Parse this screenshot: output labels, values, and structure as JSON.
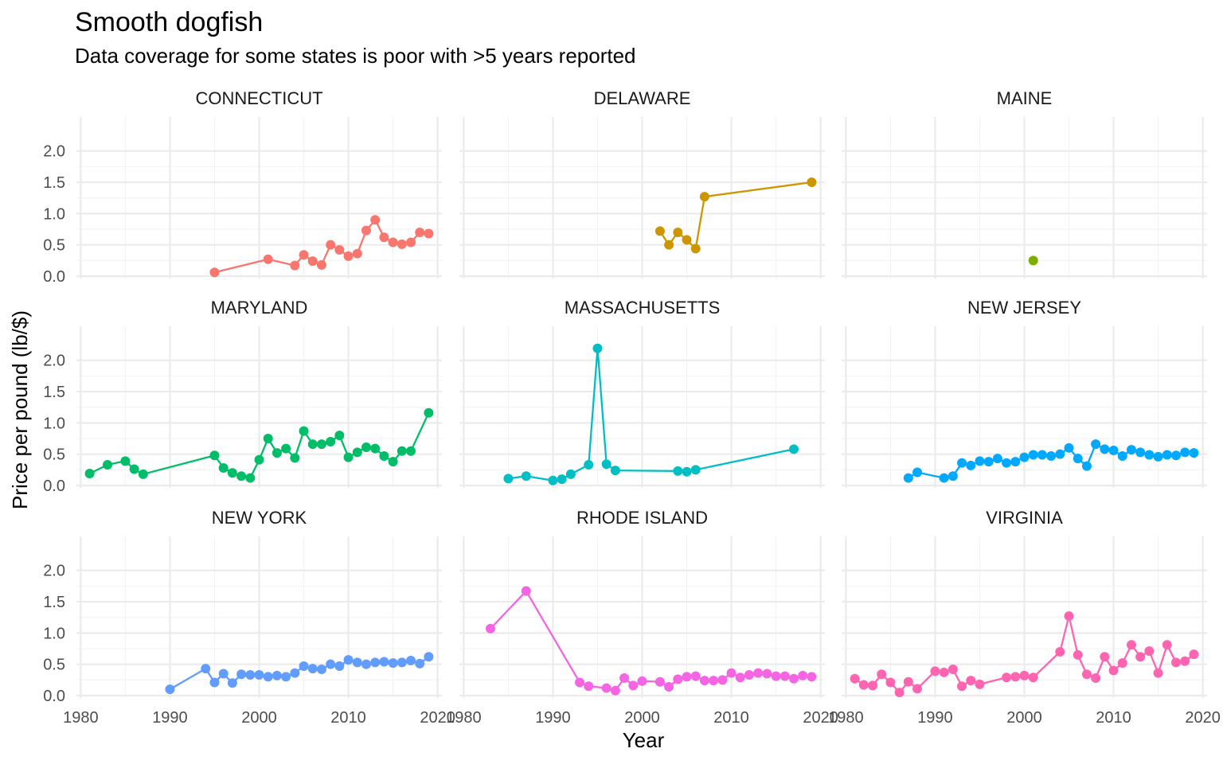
{
  "chart_data": {
    "type": "line",
    "title": "Smooth dogfish",
    "subtitle": "Data coverage for some states is poor with >5 years reported",
    "xlabel": "Year",
    "ylabel": "Price per pound (lb/$)",
    "xlim": [
      1980,
      2020
    ],
    "ylim": [
      0,
      2.2
    ],
    "x_ticks": [
      1980,
      1990,
      2000,
      2010,
      2020
    ],
    "x_tick_labels": [
      "1980",
      "1990",
      "2000",
      "2010",
      "2020"
    ],
    "y_ticks": [
      0,
      0.5,
      1,
      1.5,
      2
    ],
    "y_tick_labels": [
      "0.0",
      "0.5",
      "1.0",
      "1.5",
      "2.0"
    ],
    "grid": true,
    "legend": "none",
    "facets": [
      {
        "name": "CONNECTICUT",
        "color": "#F8766D",
        "x": [
          1995,
          2001,
          2004,
          2005,
          2006,
          2007,
          2008,
          2009,
          2010,
          2011,
          2012,
          2013,
          2014,
          2015,
          2016,
          2017,
          2018,
          2019
        ],
        "y": [
          0.06,
          0.27,
          0.17,
          0.34,
          0.24,
          0.18,
          0.5,
          0.42,
          0.32,
          0.36,
          0.73,
          0.9,
          0.62,
          0.54,
          0.51,
          0.54,
          0.7,
          0.68
        ]
      },
      {
        "name": "DELAWARE",
        "color": "#CD9600",
        "x": [
          2002,
          2003,
          2004,
          2005,
          2006,
          2007,
          2019
        ],
        "y": [
          0.72,
          0.5,
          0.7,
          0.58,
          0.44,
          1.27,
          1.5
        ]
      },
      {
        "name": "MAINE",
        "color": "#7CAE00",
        "x": [
          2001
        ],
        "y": [
          0.25
        ]
      },
      {
        "name": "MARYLAND",
        "color": "#00BE67",
        "x": [
          1981,
          1983,
          1985,
          1986,
          1987,
          1995,
          1996,
          1997,
          1998,
          1999,
          2000,
          2001,
          2002,
          2003,
          2004,
          2005,
          2006,
          2007,
          2008,
          2009,
          2010,
          2011,
          2012,
          2013,
          2014,
          2015,
          2016,
          2017,
          2019
        ],
        "y": [
          0.19,
          0.33,
          0.39,
          0.26,
          0.18,
          0.48,
          0.28,
          0.2,
          0.15,
          0.12,
          0.41,
          0.75,
          0.52,
          0.59,
          0.44,
          0.87,
          0.66,
          0.66,
          0.7,
          0.8,
          0.45,
          0.53,
          0.61,
          0.59,
          0.47,
          0.38,
          0.55,
          0.55,
          1.16
        ]
      },
      {
        "name": "MASSACHUSETTS",
        "color": "#00BFC4",
        "x": [
          1985,
          1987,
          1990,
          1991,
          1992,
          1994,
          1995,
          1996,
          1997,
          2004,
          2005,
          2006,
          2017
        ],
        "y": [
          0.11,
          0.15,
          0.08,
          0.1,
          0.18,
          0.33,
          2.19,
          0.34,
          0.24,
          0.23,
          0.22,
          0.25,
          0.58
        ]
      },
      {
        "name": "NEW JERSEY",
        "color": "#00A9FF",
        "x": [
          1987,
          1988,
          1991,
          1992,
          1993,
          1994,
          1995,
          1996,
          1997,
          1998,
          1999,
          2000,
          2001,
          2002,
          2003,
          2004,
          2005,
          2006,
          2007,
          2008,
          2009,
          2010,
          2011,
          2012,
          2013,
          2014,
          2015,
          2016,
          2017,
          2018,
          2019
        ],
        "y": [
          0.12,
          0.21,
          0.12,
          0.15,
          0.36,
          0.32,
          0.39,
          0.38,
          0.43,
          0.36,
          0.38,
          0.45,
          0.49,
          0.49,
          0.47,
          0.5,
          0.6,
          0.43,
          0.31,
          0.66,
          0.58,
          0.56,
          0.47,
          0.57,
          0.53,
          0.49,
          0.46,
          0.49,
          0.48,
          0.53,
          0.52
        ]
      },
      {
        "name": "NEW YORK",
        "color": "#619CFF",
        "x": [
          1990,
          1994,
          1995,
          1996,
          1997,
          1998,
          1999,
          2000,
          2001,
          2002,
          2003,
          2004,
          2005,
          2006,
          2007,
          2008,
          2009,
          2010,
          2011,
          2012,
          2013,
          2014,
          2015,
          2016,
          2017,
          2018,
          2019
        ],
        "y": [
          0.1,
          0.43,
          0.21,
          0.35,
          0.2,
          0.34,
          0.33,
          0.33,
          0.3,
          0.32,
          0.3,
          0.36,
          0.47,
          0.43,
          0.42,
          0.5,
          0.47,
          0.57,
          0.53,
          0.5,
          0.53,
          0.54,
          0.52,
          0.53,
          0.56,
          0.51,
          0.62
        ]
      },
      {
        "name": "RHODE ISLAND",
        "color": "#F564E3",
        "x": [
          1983,
          1987,
          1993,
          1994,
          1996,
          1997,
          1998,
          1999,
          2000,
          2002,
          2003,
          2004,
          2005,
          2006,
          2007,
          2008,
          2009,
          2010,
          2011,
          2012,
          2013,
          2014,
          2015,
          2016,
          2017,
          2018,
          2019
        ],
        "y": [
          1.07,
          1.67,
          0.21,
          0.15,
          0.12,
          0.08,
          0.28,
          0.16,
          0.23,
          0.22,
          0.14,
          0.26,
          0.3,
          0.31,
          0.24,
          0.24,
          0.25,
          0.36,
          0.29,
          0.33,
          0.36,
          0.35,
          0.31,
          0.31,
          0.27,
          0.32,
          0.3
        ]
      },
      {
        "name": "VIRGINIA",
        "color": "#FF64B0",
        "x": [
          1981,
          1982,
          1983,
          1984,
          1985,
          1986,
          1987,
          1988,
          1990,
          1991,
          1992,
          1993,
          1994,
          1995,
          1998,
          1999,
          2000,
          2001,
          2004,
          2005,
          2006,
          2007,
          2008,
          2009,
          2010,
          2011,
          2012,
          2013,
          2014,
          2015,
          2016,
          2017,
          2018,
          2019
        ],
        "y": [
          0.27,
          0.17,
          0.16,
          0.34,
          0.21,
          0.05,
          0.22,
          0.11,
          0.39,
          0.37,
          0.42,
          0.15,
          0.24,
          0.18,
          0.29,
          0.3,
          0.32,
          0.29,
          0.7,
          1.27,
          0.65,
          0.34,
          0.28,
          0.62,
          0.4,
          0.52,
          0.81,
          0.62,
          0.71,
          0.36,
          0.81,
          0.53,
          0.55,
          0.66
        ]
      }
    ]
  }
}
